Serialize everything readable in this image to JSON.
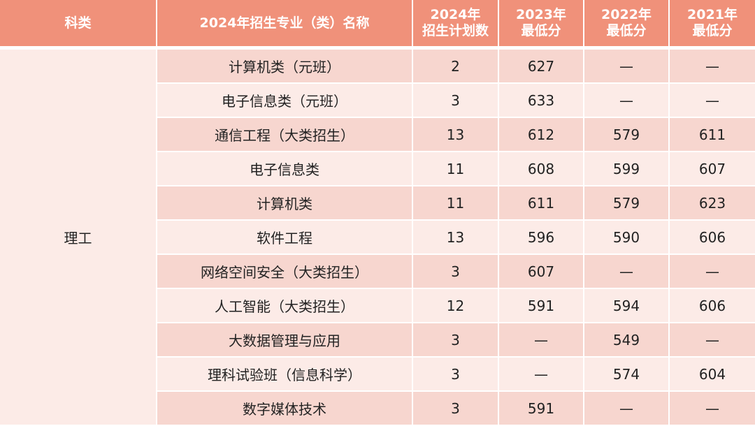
{
  "table": {
    "headers": {
      "category": "科类",
      "major": "2024年招生专业（类）名称",
      "plan_2024": [
        "2024年",
        "招生计划数"
      ],
      "min_2023": [
        "2023年",
        "最低分"
      ],
      "min_2022": [
        "2022年",
        "最低分"
      ],
      "min_2021": [
        "2021年",
        "最低分"
      ]
    },
    "category": "理工",
    "rows": [
      {
        "major": "计算机类（元班）",
        "plan_2024": "2",
        "min_2023": "627",
        "min_2022": "—",
        "min_2021": "—"
      },
      {
        "major": "电子信息类（元班）",
        "plan_2024": "3",
        "min_2023": "633",
        "min_2022": "—",
        "min_2021": "—"
      },
      {
        "major": "通信工程（大类招生）",
        "plan_2024": "13",
        "min_2023": "612",
        "min_2022": "579",
        "min_2021": "611"
      },
      {
        "major": "电子信息类",
        "plan_2024": "11",
        "min_2023": "608",
        "min_2022": "599",
        "min_2021": "607"
      },
      {
        "major": "计算机类",
        "plan_2024": "11",
        "min_2023": "611",
        "min_2022": "579",
        "min_2021": "623"
      },
      {
        "major": "软件工程",
        "plan_2024": "13",
        "min_2023": "596",
        "min_2022": "590",
        "min_2021": "606"
      },
      {
        "major": "网络空间安全（大类招生）",
        "plan_2024": "3",
        "min_2023": "607",
        "min_2022": "—",
        "min_2021": "—"
      },
      {
        "major": "人工智能（大类招生）",
        "plan_2024": "12",
        "min_2023": "591",
        "min_2022": "594",
        "min_2021": "606"
      },
      {
        "major": "大数据管理与应用",
        "plan_2024": "3",
        "min_2023": "—",
        "min_2022": "549",
        "min_2021": "—"
      },
      {
        "major": "理科试验班（信息科学）",
        "plan_2024": "3",
        "min_2023": "—",
        "min_2022": "574",
        "min_2021": "604"
      },
      {
        "major": "数字媒体技术",
        "plan_2024": "3",
        "min_2023": "591",
        "min_2022": "—",
        "min_2021": "—"
      }
    ]
  },
  "colors": {
    "header_bg": "#f0917a",
    "row_dark": "#f7d6cf",
    "row_light": "#fcebe7"
  }
}
